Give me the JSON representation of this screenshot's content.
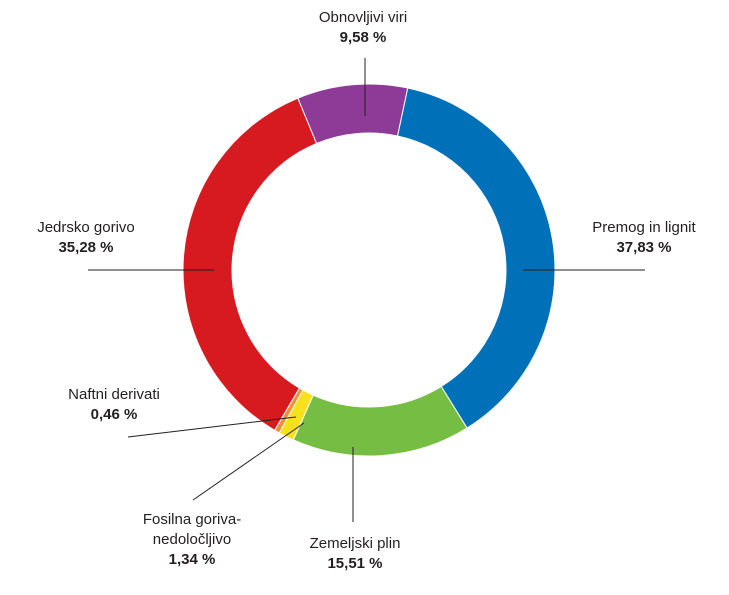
{
  "chart_data": {
    "type": "pie",
    "style": "donut",
    "slices": [
      {
        "key": "premog",
        "lines": [
          "Premog in lignit"
        ],
        "value_label": "37,83 %",
        "value": 37.83,
        "color": "#0070b8"
      },
      {
        "key": "plin",
        "lines": [
          "Zemeljski plin"
        ],
        "value_label": "15,51 %",
        "value": 15.51,
        "color": "#76bd43"
      },
      {
        "key": "fosilna",
        "lines": [
          "Fosilna goriva-",
          "nedoločljivo"
        ],
        "value_label": "1,34 %",
        "value": 1.34,
        "color": "#f7e11c"
      },
      {
        "key": "naftni",
        "lines": [
          "Naftni derivati"
        ],
        "value_label": "0,46 %",
        "value": 0.46,
        "color": "#f39130"
      },
      {
        "key": "jedrsko",
        "lines": [
          "Jedrsko gorivo"
        ],
        "value_label": "35,28 %",
        "value": 35.28,
        "color": "#d71920"
      },
      {
        "key": "obnovljivi",
        "lines": [
          "Obnovljivi viri"
        ],
        "value_label": "9,58 %",
        "value": 9.58,
        "color": "#8e3a97"
      }
    ]
  }
}
